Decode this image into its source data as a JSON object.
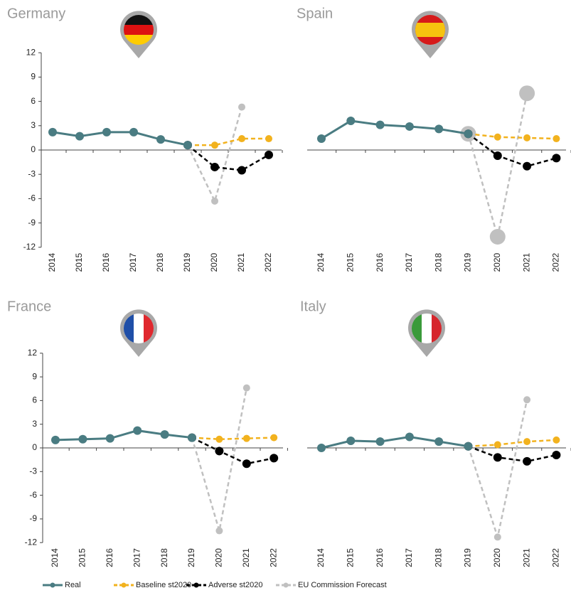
{
  "chart_data": [
    {
      "type": "line",
      "title": "Germany",
      "categories": [
        "2014",
        "2015",
        "2016",
        "2017",
        "2018",
        "2019",
        "2020",
        "2021",
        "2022"
      ],
      "ylim": [
        -12,
        12
      ],
      "yticks": [
        12,
        9,
        6,
        3,
        0,
        -3,
        -6,
        -9,
        -12
      ],
      "series": [
        {
          "name": "Real",
          "color": "#4a7c82",
          "values": [
            2.2,
            1.7,
            2.2,
            2.2,
            1.3,
            0.6,
            null,
            null,
            null
          ]
        },
        {
          "name": "Baseline st2020",
          "color": "#f2b21e",
          "values": [
            null,
            null,
            null,
            null,
            null,
            0.6,
            0.6,
            1.4,
            1.4
          ]
        },
        {
          "name": "Adverse st2020",
          "color": "#000000",
          "values": [
            null,
            null,
            null,
            null,
            null,
            0.6,
            -2.1,
            -2.5,
            -0.6
          ]
        },
        {
          "name": "EU Commission Forecast",
          "color": "#c0c0c0",
          "values": [
            null,
            null,
            null,
            null,
            null,
            0.6,
            -6.3,
            5.3,
            null
          ]
        }
      ]
    },
    {
      "type": "line",
      "title": "Spain",
      "categories": [
        "2014",
        "2015",
        "2016",
        "2017",
        "2018",
        "2019",
        "2020",
        "2021",
        "2022"
      ],
      "ylim": [
        -12,
        12
      ],
      "series": [
        {
          "name": "Real",
          "color": "#4a7c82",
          "values": [
            1.4,
            3.6,
            3.1,
            2.9,
            2.6,
            2.0,
            null,
            null,
            null
          ]
        },
        {
          "name": "Baseline st2020",
          "color": "#f2b21e",
          "values": [
            null,
            null,
            null,
            null,
            null,
            2.0,
            1.6,
            1.5,
            1.4
          ]
        },
        {
          "name": "Adverse st2020",
          "color": "#000000",
          "values": [
            null,
            null,
            null,
            null,
            null,
            2.0,
            -0.7,
            -2.0,
            -1.0
          ]
        },
        {
          "name": "EU Commission Forecast",
          "color": "#c0c0c0",
          "values": [
            null,
            null,
            null,
            null,
            null,
            2.0,
            -10.7,
            7.0,
            null
          ]
        }
      ]
    },
    {
      "type": "line",
      "title": "France",
      "categories": [
        "2014",
        "2015",
        "2016",
        "2017",
        "2018",
        "2019",
        "2020",
        "2021",
        "2022"
      ],
      "ylim": [
        -12,
        12
      ],
      "yticks": [
        12,
        9,
        6,
        3,
        0,
        -3,
        -6,
        -9,
        -12
      ],
      "series": [
        {
          "name": "Real",
          "color": "#4a7c82",
          "values": [
            1.0,
            1.1,
            1.2,
            2.2,
            1.7,
            1.3,
            null,
            null,
            null
          ]
        },
        {
          "name": "Baseline st2020",
          "color": "#f2b21e",
          "values": [
            null,
            null,
            null,
            null,
            null,
            1.3,
            1.1,
            1.2,
            1.3
          ]
        },
        {
          "name": "Adverse st2020",
          "color": "#000000",
          "values": [
            null,
            null,
            null,
            null,
            null,
            1.3,
            -0.4,
            -2.0,
            -1.3
          ]
        },
        {
          "name": "EU Commission Forecast",
          "color": "#c0c0c0",
          "values": [
            null,
            null,
            null,
            null,
            null,
            1.3,
            -10.5,
            7.6,
            null
          ]
        }
      ]
    },
    {
      "type": "line",
      "title": "Italy",
      "categories": [
        "2014",
        "2015",
        "2016",
        "2017",
        "2018",
        "2019",
        "2020",
        "2021",
        "2022"
      ],
      "ylim": [
        -12,
        12
      ],
      "series": [
        {
          "name": "Real",
          "color": "#4a7c82",
          "values": [
            0.0,
            0.9,
            0.8,
            1.4,
            0.8,
            0.2,
            null,
            null,
            null
          ]
        },
        {
          "name": "Baseline st2020",
          "color": "#f2b21e",
          "values": [
            null,
            null,
            null,
            null,
            null,
            0.2,
            0.4,
            0.8,
            1.0
          ]
        },
        {
          "name": "Adverse st2020",
          "color": "#000000",
          "values": [
            null,
            null,
            null,
            null,
            null,
            0.2,
            -1.2,
            -1.7,
            -0.9
          ]
        },
        {
          "name": "EU Commission Forecast",
          "color": "#c0c0c0",
          "values": [
            null,
            null,
            null,
            null,
            null,
            0.2,
            -11.3,
            6.1,
            null
          ]
        }
      ]
    }
  ]
}
